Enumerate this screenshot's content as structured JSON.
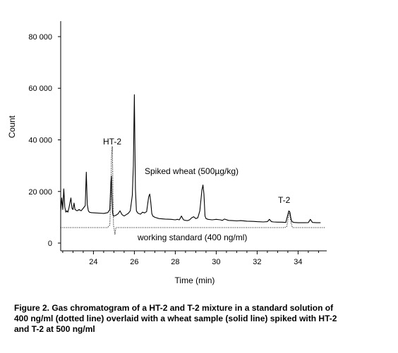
{
  "chart_data": {
    "type": "line",
    "title": "",
    "xlabel": "Time (min)",
    "ylabel": "Count",
    "xlim": [
      22.4,
      35.4
    ],
    "ylim": [
      -3000,
      86000
    ],
    "x_ticks": [
      24,
      26,
      28,
      30,
      32,
      34
    ],
    "x_tick_labels": [
      "24",
      "26",
      "28",
      "30",
      "32",
      "34"
    ],
    "y_ticks": [
      0,
      20000,
      40000,
      60000,
      80000
    ],
    "y_tick_labels": [
      "0",
      "20 000",
      "40 000",
      "60 000",
      "80 000"
    ],
    "grid": false,
    "series": [
      {
        "style": "solid",
        "x": [
          22.4,
          22.45,
          22.5,
          22.55,
          22.6,
          22.65,
          22.7,
          22.75,
          22.8,
          22.9,
          22.95,
          23.0,
          23.05,
          23.1,
          23.2,
          23.3,
          23.4,
          23.5,
          23.6,
          23.65,
          23.7,
          23.75,
          23.8,
          23.9,
          24.1,
          24.3,
          24.5,
          24.7,
          24.8,
          24.85,
          24.88,
          24.9,
          24.93,
          24.97,
          25.0,
          25.1,
          25.2,
          25.3,
          25.4,
          25.5,
          25.6,
          25.7,
          25.8,
          25.9,
          25.95,
          26.0,
          26.05,
          26.1,
          26.15,
          26.2,
          26.3,
          26.4,
          26.5,
          26.6,
          26.7,
          26.75,
          26.8,
          26.85,
          26.9,
          27.0,
          27.2,
          27.5,
          27.8,
          28.0,
          28.1,
          28.2,
          28.3,
          28.4,
          28.5,
          28.6,
          28.7,
          28.8,
          28.9,
          29.0,
          29.1,
          29.2,
          29.3,
          29.35,
          29.4,
          29.45,
          29.5,
          29.6,
          29.8,
          30.0,
          30.2,
          30.3,
          30.4,
          30.6,
          30.8,
          31.0,
          31.2,
          31.5,
          31.8,
          32.0,
          32.3,
          32.5,
          32.6,
          32.7,
          32.8,
          33.0,
          33.2,
          33.4,
          33.5,
          33.55,
          33.6,
          33.65,
          33.7,
          33.8,
          34.0,
          34.3,
          34.5,
          34.6,
          34.7,
          34.9,
          35.1
        ],
        "y": [
          12500,
          17500,
          13000,
          21000,
          14000,
          12000,
          12500,
          12000,
          13500,
          17500,
          13500,
          13000,
          15500,
          13000,
          12500,
          13000,
          12500,
          13500,
          14500,
          27500,
          15000,
          12500,
          12000,
          11800,
          11700,
          11600,
          11500,
          11800,
          13000,
          23500,
          26000,
          19000,
          12000,
          10500,
          10500,
          10800,
          11300,
          12500,
          11000,
          10500,
          11000,
          11500,
          12500,
          18500,
          30000,
          57500,
          21000,
          12500,
          11800,
          11500,
          11200,
          12000,
          11700,
          12200,
          18000,
          19000,
          16000,
          11500,
          10500,
          10000,
          9500,
          9300,
          9200,
          9000,
          9200,
          9000,
          10500,
          9000,
          8800,
          8700,
          9000,
          9800,
          10200,
          9500,
          9800,
          12500,
          20500,
          22500,
          19000,
          10500,
          9500,
          9200,
          9000,
          9200,
          9000,
          8800,
          9300,
          8800,
          8700,
          8600,
          8700,
          8500,
          8400,
          8300,
          8200,
          8300,
          9200,
          8300,
          8200,
          8100,
          8100,
          8000,
          11000,
          12500,
          12000,
          9500,
          8300,
          8000,
          7900,
          7900,
          7950,
          9200,
          8000,
          7900,
          7900
        ]
      },
      {
        "style": "dotted",
        "x": [
          22.4,
          24.7,
          24.8,
          24.85,
          24.88,
          24.92,
          24.95,
          24.98,
          25.05,
          25.1,
          33.35,
          33.45,
          33.52,
          33.58,
          33.65,
          33.72,
          35.3
        ],
        "y": [
          6000,
          6000,
          7000,
          18000,
          33000,
          37500,
          22000,
          7000,
          3500,
          6000,
          6000,
          6500,
          10000,
          12000,
          8000,
          6000,
          6000
        ]
      }
    ],
    "annotations": {
      "ht2": "HT-2",
      "t2": "T-2",
      "spiked": "Spiked wheat (500µg/kg)",
      "standard": "working standard (400 ng/ml)"
    }
  },
  "caption": {
    "line1": "Figure 2.  Gas chromatogram of a HT-2 and T-2 mixture in a standard solution of",
    "line2": "400 ng/ml (dotted line) overlaid with a wheat sample (solid line) spiked with HT-2",
    "line3": "and T-2 at 500 ng/ml"
  }
}
